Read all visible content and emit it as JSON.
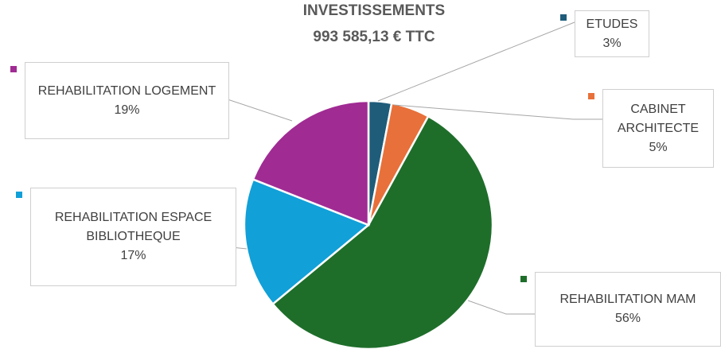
{
  "chart_data": {
    "type": "pie",
    "title": "INVESTISSEMENTS",
    "subtitle": "993 585,13 € TTC",
    "categories": [
      "ETUDES",
      "CABINET ARCHITECTE",
      "REHABILITATION MAM",
      "REHABILITATION ESPACE BIBLIOTHEQUE",
      "REHABILITATION LOGEMENT"
    ],
    "values": [
      3,
      5,
      56,
      17,
      19
    ],
    "value_labels": [
      "3%",
      "5%",
      "56%",
      "17%",
      "19%"
    ],
    "colors": [
      "#1f5c7a",
      "#e8703a",
      "#1e6e2a",
      "#11a0d8",
      "#a02b93"
    ]
  }
}
